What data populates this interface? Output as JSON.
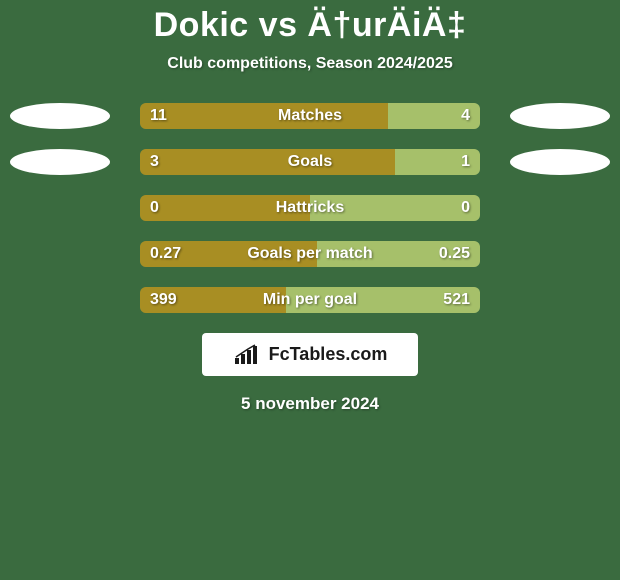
{
  "colors": {
    "page_bg": "#3a6b3f",
    "title_color": "#ffffff",
    "subtitle_color": "#ffffff",
    "bar_left_color": "#a88e23",
    "bar_right_color": "#a6c06a",
    "bar_text_color": "#ffffff",
    "badge_color": "#ffffff",
    "logo_bg": "#ffffff",
    "logo_text_color": "#1a1a1a",
    "date_color": "#ffffff",
    "track_bg": "#4d7a52"
  },
  "title": "Dokic vs Ä†urÄiÄ‡",
  "subtitle": "Club competitions, Season 2024/2025",
  "rows": [
    {
      "label": "Matches",
      "left": "11",
      "right": "4",
      "left_num": 11,
      "right_num": 4,
      "left_pct": 73,
      "right_pct": 27,
      "show_badges": true
    },
    {
      "label": "Goals",
      "left": "3",
      "right": "1",
      "left_num": 3,
      "right_num": 1,
      "left_pct": 75,
      "right_pct": 25,
      "show_badges": true
    },
    {
      "label": "Hattricks",
      "left": "0",
      "right": "0",
      "left_num": 0,
      "right_num": 0,
      "left_pct": 50,
      "right_pct": 50,
      "show_badges": false
    },
    {
      "label": "Goals per match",
      "left": "0.27",
      "right": "0.25",
      "left_num": 0.27,
      "right_num": 0.25,
      "left_pct": 52,
      "right_pct": 48,
      "show_badges": false
    },
    {
      "label": "Min per goal",
      "left": "399",
      "right": "521",
      "left_num": 399,
      "right_num": 521,
      "left_pct": 43,
      "right_pct": 57,
      "show_badges": false
    }
  ],
  "logo_text": "FcTables.com",
  "date": "5 november 2024",
  "fonts": {
    "title_size": 34,
    "subtitle_size": 16,
    "bar_label_size": 16,
    "bar_val_size": 16,
    "logo_size": 18,
    "date_size": 17
  }
}
